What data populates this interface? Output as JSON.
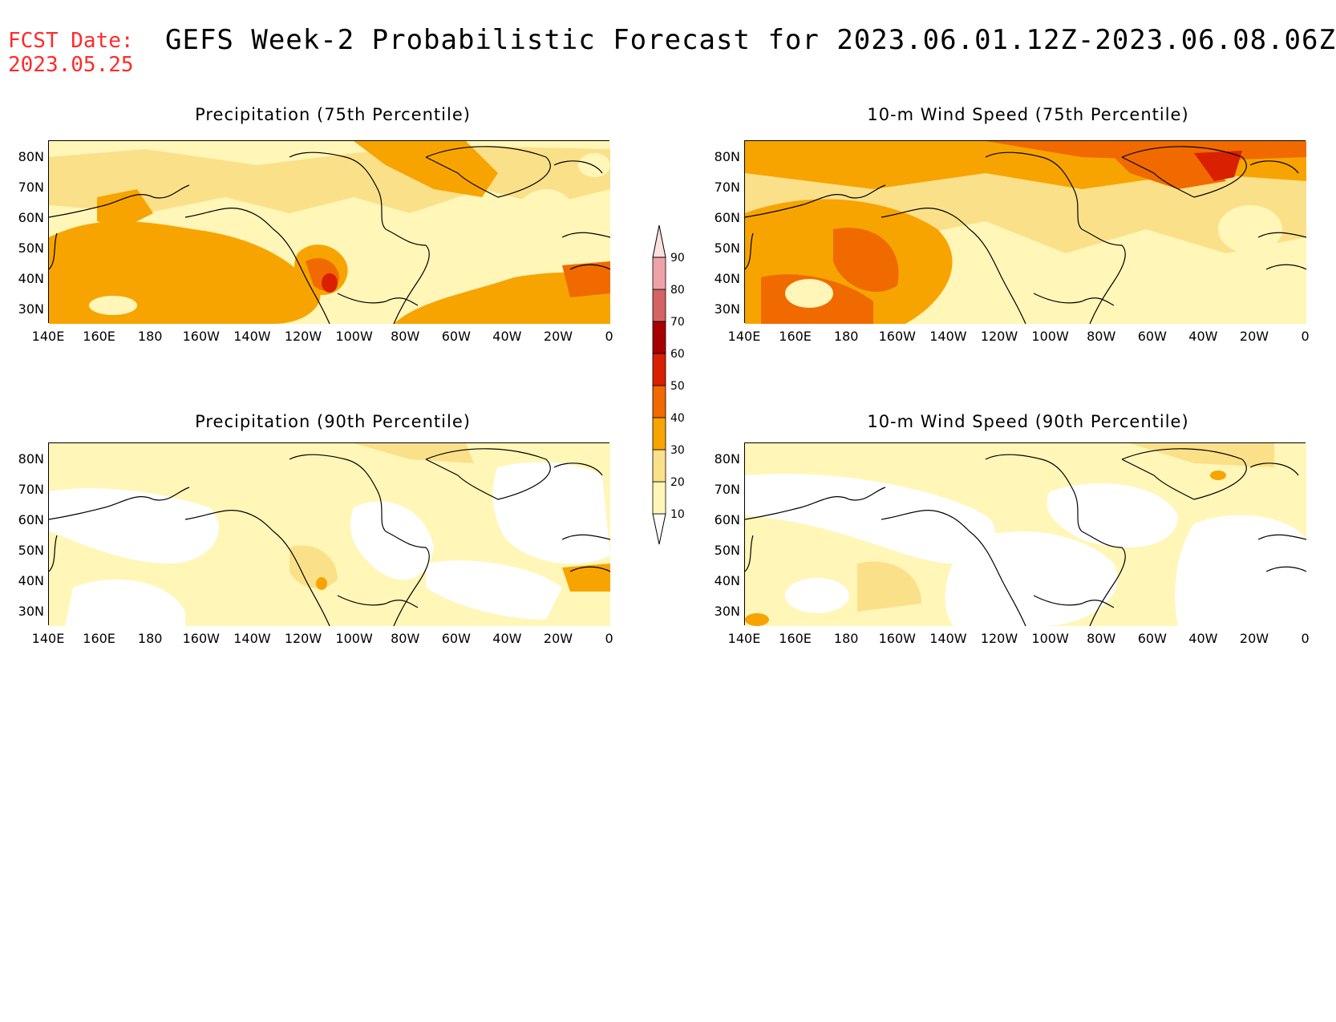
{
  "header": {
    "fcst_label": "FCST Date:",
    "fcst_date": "2023.05.25",
    "title": "GEFS Week-2 Probabilistic Forecast for 2023.06.01.12Z-2023.06.08.06Z"
  },
  "panels": [
    {
      "title": "Precipitation (75th Percentile)",
      "field": "precip75"
    },
    {
      "title": "10-m Wind Speed (75th Percentile)",
      "field": "wind75"
    },
    {
      "title": "Precipitation (90th Percentile)",
      "field": "precip90"
    },
    {
      "title": "10-m Wind Speed (90th Percentile)",
      "field": "wind90"
    }
  ],
  "lat_labels": [
    "80N",
    "70N",
    "60N",
    "50N",
    "40N",
    "30N"
  ],
  "lon_labels": [
    "140E",
    "160E",
    "180",
    "160W",
    "140W",
    "120W",
    "100W",
    "80W",
    "60W",
    "40W",
    "20W",
    "0"
  ],
  "colorbar": {
    "levels": [
      "10",
      "20",
      "30",
      "40",
      "50",
      "60",
      "70",
      "80",
      "90"
    ],
    "colors": [
      "#fff6b8",
      "#fbe08a",
      "#f7a400",
      "#f06a00",
      "#d92000",
      "#a80000",
      "#d46363",
      "#eea2a8",
      "#fbe0e0"
    ]
  }
}
